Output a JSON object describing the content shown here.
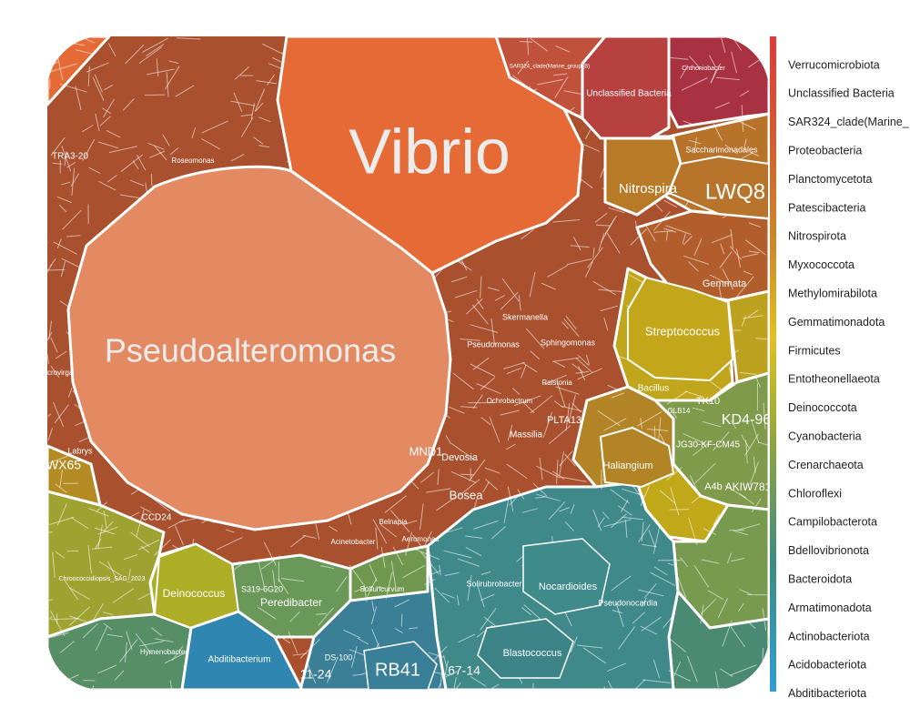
{
  "chart_data": {
    "type": "voronoi-treemap",
    "title": "",
    "groups": [
      {
        "name": "Verrucomicrobiota",
        "color": "#d63c3c"
      },
      {
        "name": "Unclassified Bacteria",
        "color": "#c84a3d"
      },
      {
        "name": "SAR324_clade(Marine_",
        "color": "#c9563a"
      },
      {
        "name": "Proteobacteria",
        "color": "#b5532f"
      },
      {
        "name": "Planctomycetota",
        "color": "#c26a2d"
      },
      {
        "name": "Patescibacteria",
        "color": "#c57a28"
      },
      {
        "name": "Nitrospirota",
        "color": "#c08a22"
      },
      {
        "name": "Myxococcota",
        "color": "#bb9a1e"
      },
      {
        "name": "Methylomirabilota",
        "color": "#c0a81a"
      },
      {
        "name": "Gemmatimonadota",
        "color": "#c5b416"
      },
      {
        "name": "Firmicutes",
        "color": "#c9c012"
      },
      {
        "name": "Entotheonellaeota",
        "color": "#b4b41e"
      },
      {
        "name": "Deinococcota",
        "color": "#a8ae28"
      },
      {
        "name": "Cyanobacteria",
        "color": "#9aa432"
      },
      {
        "name": "Crenarchaeota",
        "color": "#8e9e3c"
      },
      {
        "name": "Chloroflexi",
        "color": "#7f9a48"
      },
      {
        "name": "Campilobacterota",
        "color": "#6e9656"
      },
      {
        "name": "Bdellovibrionota",
        "color": "#5c9264"
      },
      {
        "name": "Bacteroidota",
        "color": "#4b8e70"
      },
      {
        "name": "Armatimonadota",
        "color": "#3f8a7e"
      },
      {
        "name": "Actinobacteriota",
        "color": "#3c8790"
      },
      {
        "name": "Acidobacteriota",
        "color": "#3a8aa6"
      },
      {
        "name": "Abditibacteriota",
        "color": "#3d9ccb"
      }
    ],
    "labeled_cells": [
      {
        "name": "Vibrio",
        "group": "Proteobacteria",
        "color": "#e56a36"
      },
      {
        "name": "Pseudoalteromonas",
        "group": "Proteobacteria",
        "color": "#e38a62"
      },
      {
        "name": "Unclassified Bacteria",
        "group": "Unclassified Bacteria",
        "color": "#b7413f"
      },
      {
        "name": "Nitrospira",
        "group": "Nitrospirota",
        "color": "#b87a26"
      },
      {
        "name": "LWQ8",
        "group": "Patescibacteria",
        "color": "#b8742a"
      },
      {
        "name": "Streptococcus",
        "group": "Firmicutes",
        "color": "#c3a61a"
      },
      {
        "name": "Bacillus",
        "group": "Firmicutes",
        "color": "#b79b1c"
      },
      {
        "name": "KD4-96",
        "group": "Chloroflexi",
        "color": "#7e9a4a"
      },
      {
        "name": "Haliangium",
        "group": "Myxococcota",
        "color": "#b38426"
      },
      {
        "name": "Deinococcus",
        "group": "Deinococcota",
        "color": "#adae26"
      },
      {
        "name": "Abditibacterium",
        "group": "Abditibacteriota",
        "color": "#2f86b0"
      },
      {
        "name": "Peredibacter",
        "group": "Bdellovibrionota",
        "color": "#6a9858"
      },
      {
        "name": "Nocardioides",
        "group": "Actinobacteriota",
        "color": "#3f8a8a"
      },
      {
        "name": "Blastococcus",
        "group": "Actinobacteriota",
        "color": "#3d8488"
      },
      {
        "name": "RB41",
        "group": "Acidobacteriota",
        "color": "#3a7f98"
      },
      {
        "name": "Solirubrobacter",
        "group": "Actinobacteriota",
        "color": "#3f8c88"
      },
      {
        "name": "Pseudonocardia",
        "group": "Actinobacteriota",
        "color": "#3d8a8c"
      },
      {
        "name": "Gemmata",
        "group": "Planctomycetota",
        "color": "#b4622c"
      },
      {
        "name": "WX65",
        "group": "Entotheonellaeota",
        "color": "#b48a22"
      },
      {
        "name": "Bosea",
        "group": "Proteobacteria",
        "color": "#b3552f"
      },
      {
        "name": "Devosia",
        "group": "Proteobacteria",
        "color": "#b3552f"
      },
      {
        "name": "MND1",
        "group": "Proteobacteria",
        "color": "#b3552f"
      },
      {
        "name": "Massilia",
        "group": "Proteobacteria",
        "color": "#b3552f"
      },
      {
        "name": "PLTA13",
        "group": "Proteobacteria",
        "color": "#b3552f"
      },
      {
        "name": "Skermanella",
        "group": "Proteobacteria",
        "color": "#b3552f"
      },
      {
        "name": "Sphingomonas",
        "group": "Proteobacteria",
        "color": "#b3552f"
      },
      {
        "name": "Pseudomonas",
        "group": "Proteobacteria",
        "color": "#b3552f"
      },
      {
        "name": "Sulfuricurvum",
        "group": "Campilobacterota",
        "color": "#70984e"
      },
      {
        "name": "Chthoniobacter",
        "group": "Verrucomicrobiota",
        "color": "#a83440"
      }
    ]
  },
  "labels": {
    "vibrio": "Vibrio",
    "pseudoalteromonas": "Pseudoalteromonas",
    "unclassified_bacteria": "Unclassified Bacteria",
    "nitrospira": "Nitrospira",
    "lwq8": "LWQ8",
    "streptococcus": "Streptococcus",
    "bacillus": "Bacillus",
    "kd496": "KD4-96",
    "haliangium": "Haliangium",
    "deinococcus": "Deinococcus",
    "abditibacterium": "Abditibacterium",
    "peredibacter": "Peredibacter",
    "nocardioides": "Nocardioides",
    "blastococcus": "Blastococcus",
    "rb41": "RB41",
    "solirubrobacter": "Solirubrobacter",
    "pseudonocardia": "Pseudonocardia",
    "gemmata": "Gemmata",
    "wx65": "WX65",
    "bosea": "Bosea",
    "devosia": "Devosia",
    "mnd1": "MND1",
    "massilia": "Massilia",
    "plta13": "PLTA13",
    "skermanella": "Skermanella",
    "sphingomonas": "Sphingomonas",
    "pseudomonas": "Pseudomonas",
    "sulfuricurvum": "Sulfuricurvum",
    "chthoniobacter": "Chthoniobacter",
    "tra320": "TRA3-20",
    "roseomonas": "Roseomonas",
    "acinetobacter": "Acinetobacter",
    "aeromonas": "Aeromonas",
    "ochrobactrum": "Ochrobactrum",
    "ralstonia": "Ralstonia",
    "saccharimonadales": "Saccharimonadales",
    "tk10": "TK10",
    "olb14": "OLB14",
    "akiw781": "AKIW781",
    "a4b": "A4b",
    "jg30": "JG30-KF-CM45",
    "ds100": "DS-100",
    "n1124": "11-24",
    "n6714": "67-14",
    "labrys": "Labrys",
    "ccd24": "CCD24",
    "s31": "S319-6G20",
    "belnapia": "Belnapia",
    "nitrospira_small": "Nitrospira",
    "microvirga": "Microvirga",
    "chloroplast": "Chroococcidiopsis_SAG_2023",
    "hymenobacter": "Hymenobacter",
    "sar324": "SAR324_clade(Marine_group_B)"
  }
}
